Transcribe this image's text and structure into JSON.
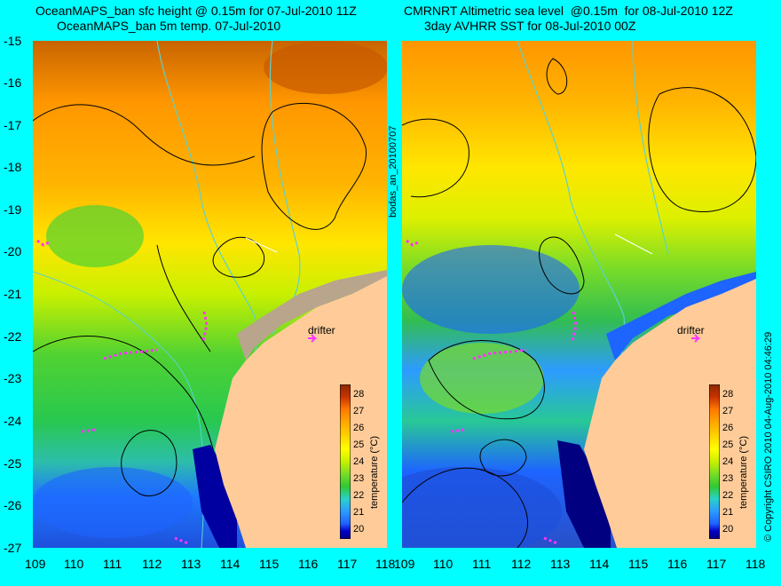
{
  "left_panel": {
    "title_line1": "OceanMAPS_ban sfc height @ 0.15m for 07-Jul-2010 11Z",
    "title_line2": "OceanMAPS_ban 5m temp. 07-Jul-2010",
    "drifter_label": "drifter"
  },
  "right_panel": {
    "title_line1": "CMRNRT Altimetric sea level  @0.15m  for 08-Jul-2010 12Z",
    "title_line2": "3day AVHRR SST for 08-Jul-2010 00Z",
    "drifter_label": "drifter"
  },
  "axes": {
    "lat_ticks": [
      "-15",
      "-16",
      "-17",
      "-18",
      "-19",
      "-20",
      "-21",
      "-22",
      "-23",
      "-24",
      "-25",
      "-26",
      "-27"
    ],
    "lon_ticks": [
      "109",
      "110",
      "111",
      "112",
      "113",
      "114",
      "115",
      "116",
      "117",
      "118"
    ]
  },
  "colorbar": {
    "label": "temperature (°C)",
    "ticks": [
      "28",
      "27",
      "26",
      "25",
      "24",
      "23",
      "22",
      "21",
      "20"
    ],
    "range": [
      19.5,
      28.5
    ],
    "colors": [
      "#000080",
      "#0000c8",
      "#1e64ff",
      "#2d9bff",
      "#28d2c8",
      "#32c832",
      "#78dc28",
      "#c8f000",
      "#ffff00",
      "#ffd200",
      "#ffaa00",
      "#ff7800",
      "#c83200",
      "#8b2a00"
    ]
  },
  "side_labels": {
    "center": "bodas_an_20100707",
    "right": "© Copyright CSIRO 2010  04-Aug-2010 04:46:29"
  },
  "map_colors": {
    "land": "#ffcc99",
    "shelf_mask": "#b8a58c",
    "contour": "#000000",
    "isobath": "#5ad2d2",
    "drifter_track": "#ff33ff"
  }
}
